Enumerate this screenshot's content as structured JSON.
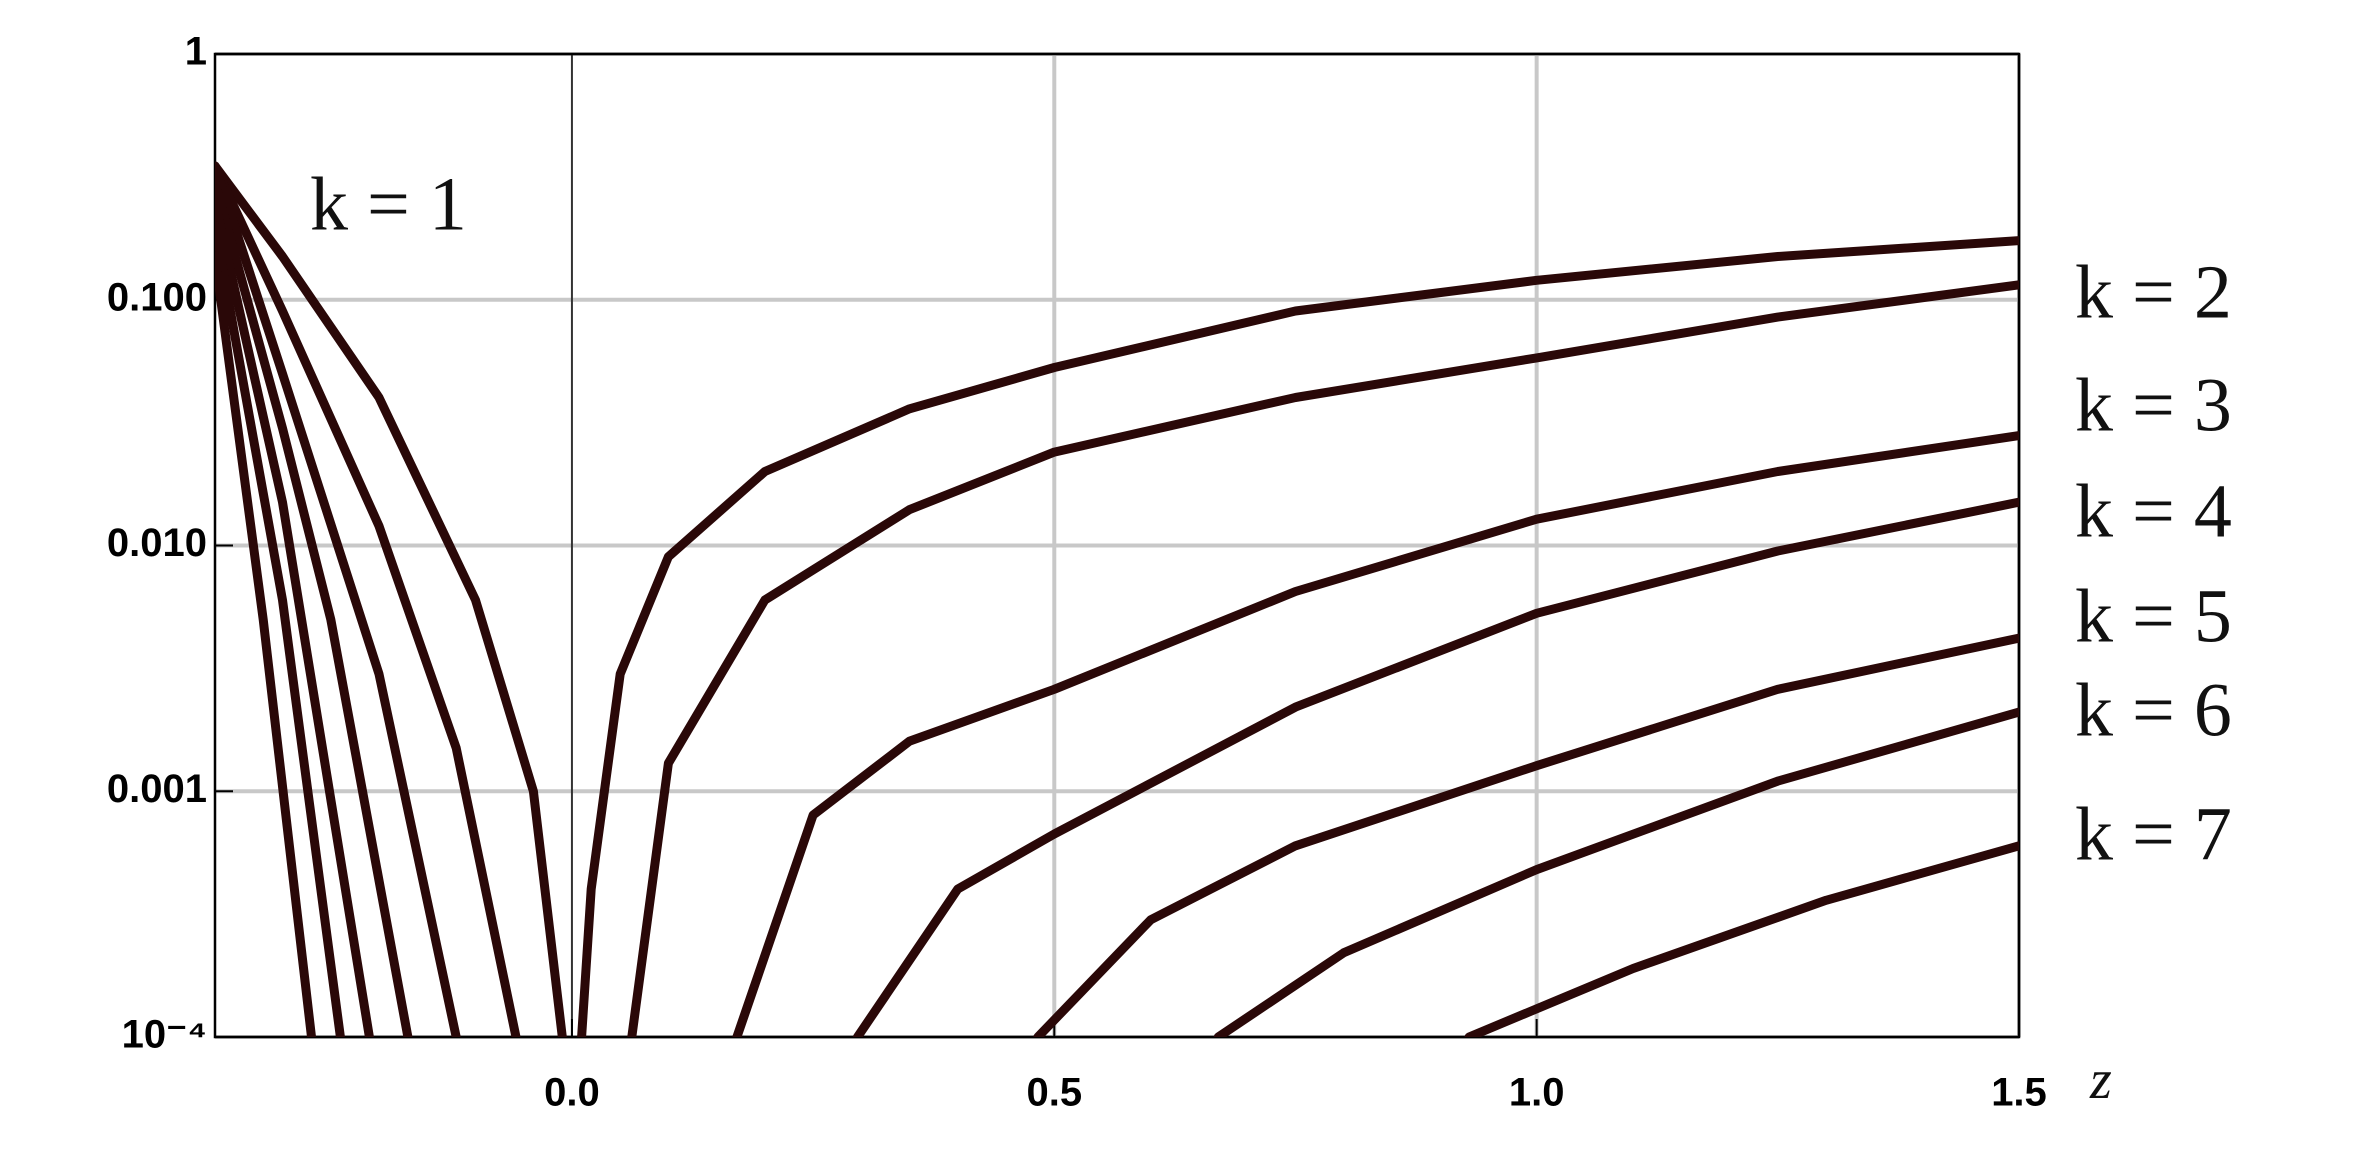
{
  "chart_data": {
    "type": "line",
    "x_label": "z",
    "xlim": [
      -0.37,
      1.5
    ],
    "ylim": [
      0.0001,
      1
    ],
    "log_y": true,
    "grid": true,
    "color": "#2a0808",
    "xticks": [
      {
        "value": 0,
        "label": "0.0"
      },
      0.5,
      {
        "value": 1,
        "label": "1.0"
      },
      1.5
    ],
    "yticks": [
      {
        "value": 0.0001,
        "label": "10⁻⁴"
      },
      {
        "value": 0.001,
        "label": "0.001"
      },
      {
        "value": 0.01,
        "label": "0.010"
      },
      {
        "value": 0.1,
        "label": "0.100"
      },
      1
    ],
    "series": [
      {
        "name": "k = 1",
        "x": [
          -0.37,
          -0.3,
          -0.2,
          -0.1,
          -0.04,
          -0.01,
          null,
          0.01,
          0.02,
          0.05,
          0.1,
          0.2,
          0.35,
          0.5,
          0.75,
          1.0,
          1.25,
          1.5
        ],
        "values": [
          0.35,
          0.15,
          0.04,
          0.006,
          0.001,
          0.0001,
          null,
          0.0001,
          0.0004,
          0.003,
          0.009,
          0.02,
          0.036,
          0.053,
          0.09,
          0.12,
          0.15,
          0.174
        ]
      },
      {
        "name": "k = 2",
        "x": [
          -0.37,
          -0.3,
          -0.2,
          -0.12,
          -0.058,
          null,
          0.062,
          0.1,
          0.2,
          0.35,
          0.5,
          0.75,
          1.0,
          1.25,
          1.5
        ],
        "values": [
          0.35,
          0.09,
          0.012,
          0.0015,
          0.0001,
          null,
          0.0001,
          0.0013,
          0.006,
          0.014,
          0.024,
          0.04,
          0.058,
          0.085,
          0.115
        ]
      },
      {
        "name": "k = 3",
        "x": [
          -0.37,
          -0.3,
          -0.2,
          -0.12,
          null,
          0.171,
          0.25,
          0.35,
          0.5,
          0.75,
          1.0,
          1.25,
          1.5
        ],
        "values": [
          0.35,
          0.05,
          0.003,
          0.0001,
          null,
          0.0001,
          0.0008,
          0.0016,
          0.0026,
          0.0065,
          0.0128,
          0.02,
          0.028
        ]
      },
      {
        "name": "k = 4",
        "x": [
          -0.37,
          -0.3,
          -0.25,
          -0.17,
          null,
          0.296,
          0.4,
          0.5,
          0.75,
          1.0,
          1.25,
          1.5
        ],
        "values": [
          0.3,
          0.03,
          0.005,
          0.0001,
          null,
          0.0001,
          0.0004,
          0.00067,
          0.0022,
          0.0053,
          0.0095,
          0.015
        ]
      },
      {
        "name": "k = 5",
        "x": [
          -0.37,
          -0.3,
          -0.21,
          null,
          0.483,
          0.6,
          0.75,
          1.0,
          1.25,
          1.5
        ],
        "values": [
          0.25,
          0.015,
          0.0001,
          null,
          0.0001,
          0.0003,
          0.0006,
          0.00127,
          0.0026,
          0.0042
        ]
      },
      {
        "name": "k = 6",
        "x": [
          -0.37,
          -0.3,
          -0.24,
          null,
          0.67,
          0.8,
          1.0,
          1.25,
          1.5
        ],
        "values": [
          0.2,
          0.006,
          0.0001,
          null,
          0.0001,
          0.00022,
          0.00048,
          0.0011,
          0.0021
        ]
      },
      {
        "name": "k = 7",
        "x": [
          -0.37,
          -0.32,
          -0.27,
          null,
          0.93,
          1.1,
          1.3,
          1.5
        ],
        "values": [
          0.15,
          0.005,
          0.0001,
          null,
          0.0001,
          0.00019,
          0.00036,
          0.0006
        ]
      }
    ]
  }
}
